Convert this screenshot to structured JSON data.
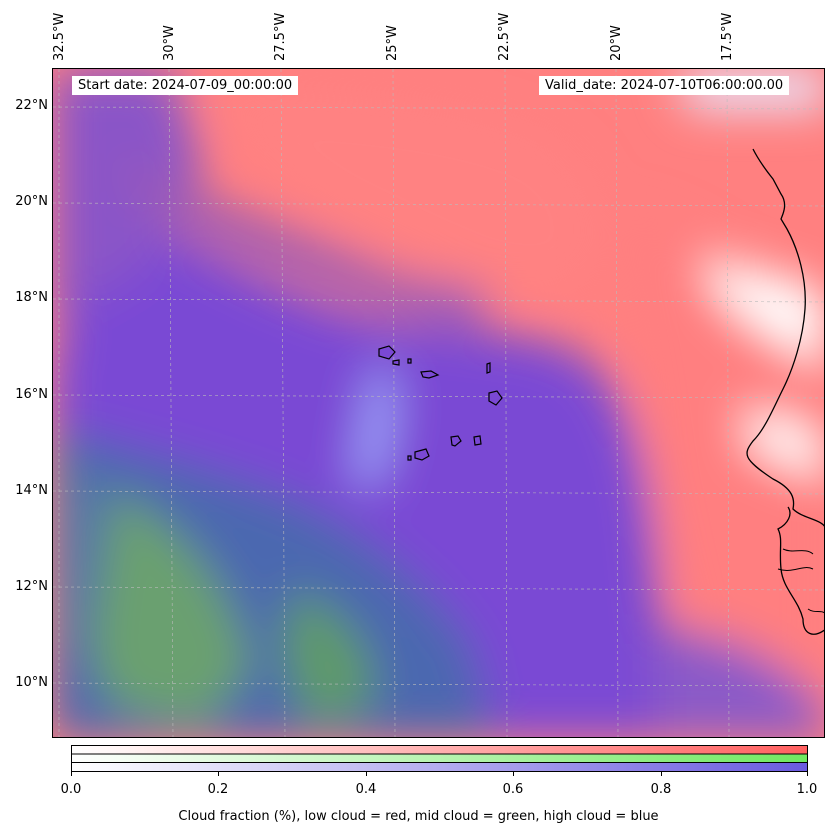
{
  "map": {
    "start_date": "Start date: 2024-07-09_00:00:00",
    "valid_date": "Valid_date: 2024-07-10T06:00:00.00",
    "lon_labels": [
      "32.5°W",
      "30°W",
      "27.5°W",
      "25°W",
      "22.5°W",
      "20°W",
      "17.5°W"
    ],
    "lat_labels": [
      "22°N",
      "20°N",
      "18°N",
      "16°N",
      "14°N",
      "12°N",
      "10°N"
    ],
    "colors": {
      "low_cloud": "#ff7f7f",
      "mid_cloud": "#7fe57f",
      "high_cloud": "#6a5ce0",
      "mixed": "#7a3fd0"
    }
  },
  "colorbar": {
    "ticks": [
      "0.0",
      "0.2",
      "0.4",
      "0.6",
      "0.8",
      "1.0"
    ],
    "label": "Cloud fraction (%), low cloud = red, mid cloud = green, high cloud = blue",
    "rows": [
      "red",
      "green",
      "blue"
    ]
  }
}
